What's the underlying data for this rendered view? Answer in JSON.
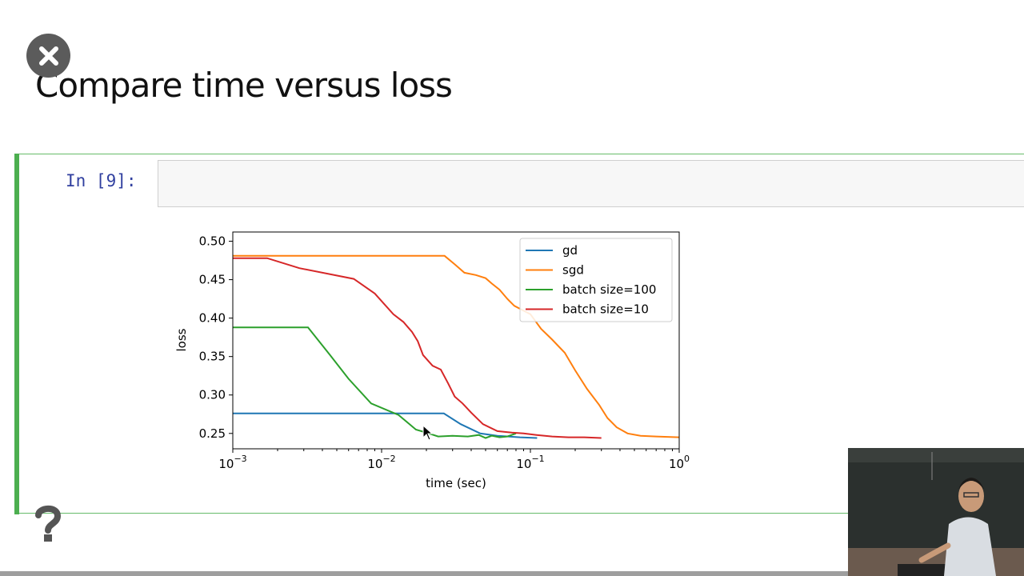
{
  "slide": {
    "title": "Compare time versus loss",
    "close_icon": "close-icon",
    "help_icon": "help-icon"
  },
  "cell": {
    "prompt": "In [9]:",
    "input_value": ""
  },
  "colors": {
    "gd": "#1f77b4",
    "sgd": "#ff7f0e",
    "batch100": "#2ca02c",
    "batch10": "#d62728",
    "cell_border": "#4caf50",
    "prompt": "#303f9f"
  },
  "chart_data": {
    "type": "line",
    "xscale": "log",
    "xlabel": "time (sec)",
    "ylabel": "loss",
    "xlim": [
      0.001,
      1
    ],
    "ylim": [
      0.23,
      0.512
    ],
    "xticks": [
      {
        "base": "10",
        "exp": "−3"
      },
      {
        "base": "10",
        "exp": "−2"
      },
      {
        "base": "10",
        "exp": "−1"
      },
      {
        "base": "10",
        "exp": "0"
      }
    ],
    "yticks": [
      "0.25",
      "0.30",
      "0.35",
      "0.40",
      "0.45",
      "0.50"
    ],
    "ytick_values": [
      0.25,
      0.3,
      0.35,
      0.4,
      0.45,
      0.5
    ],
    "legend_position": "top-right",
    "grid": false,
    "series": [
      {
        "name": "gd",
        "color": "#1f77b4",
        "x": [
          0.001,
          0.0026,
          0.0262,
          0.034,
          0.046,
          0.06,
          0.085,
          0.111
        ],
        "y": [
          0.276,
          0.276,
          0.276,
          0.262,
          0.25,
          0.247,
          0.245,
          0.244
        ]
      },
      {
        "name": "sgd",
        "color": "#ff7f0e",
        "x": [
          0.001,
          0.01,
          0.0265,
          0.031,
          0.036,
          0.043,
          0.05,
          0.055,
          0.062,
          0.07,
          0.078,
          0.1,
          0.118,
          0.14,
          0.17,
          0.2,
          0.24,
          0.29,
          0.33,
          0.38,
          0.45,
          0.55,
          0.7,
          1.0
        ],
        "y": [
          0.481,
          0.481,
          0.481,
          0.47,
          0.459,
          0.456,
          0.452,
          0.445,
          0.437,
          0.425,
          0.416,
          0.405,
          0.386,
          0.372,
          0.355,
          0.332,
          0.308,
          0.287,
          0.27,
          0.258,
          0.25,
          0.247,
          0.246,
          0.245
        ]
      },
      {
        "name": "batch size=100",
        "color": "#2ca02c",
        "x": [
          0.001,
          0.0032,
          0.0045,
          0.006,
          0.0085,
          0.013,
          0.017,
          0.02,
          0.024,
          0.03,
          0.038,
          0.045,
          0.05,
          0.055,
          0.062,
          0.07,
          0.08
        ],
        "y": [
          0.388,
          0.388,
          0.352,
          0.321,
          0.289,
          0.274,
          0.255,
          0.251,
          0.246,
          0.247,
          0.246,
          0.248,
          0.244,
          0.247,
          0.245,
          0.246,
          0.25
        ]
      },
      {
        "name": "batch size=10",
        "color": "#d62728",
        "x": [
          0.001,
          0.0017,
          0.0028,
          0.0065,
          0.009,
          0.012,
          0.014,
          0.016,
          0.0175,
          0.019,
          0.022,
          0.025,
          0.028,
          0.031,
          0.035,
          0.04,
          0.048,
          0.06,
          0.075,
          0.09,
          0.11,
          0.14,
          0.18,
          0.23,
          0.3
        ],
        "y": [
          0.478,
          0.478,
          0.465,
          0.451,
          0.432,
          0.405,
          0.395,
          0.382,
          0.37,
          0.352,
          0.338,
          0.333,
          0.315,
          0.298,
          0.289,
          0.277,
          0.262,
          0.253,
          0.251,
          0.25,
          0.248,
          0.246,
          0.245,
          0.245,
          0.244
        ]
      }
    ]
  }
}
